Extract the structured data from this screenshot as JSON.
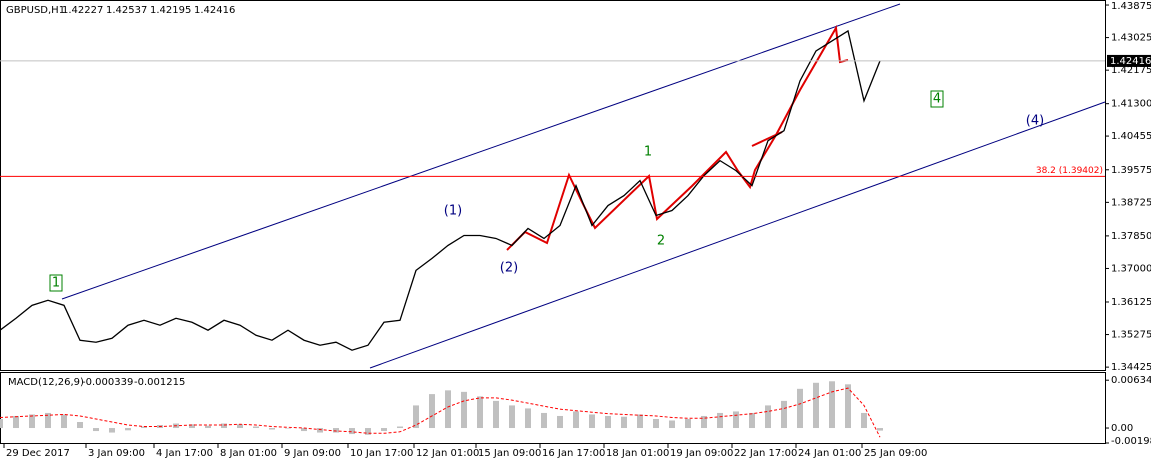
{
  "chart_data": [
    {
      "type": "line",
      "title": "GBPUSD,H1",
      "ohlc": [
        1.42227,
        1.42537,
        1.42195,
        1.42416
      ],
      "x": [
        0,
        8,
        16,
        24,
        32,
        40,
        48,
        56,
        64,
        72,
        80,
        88,
        96,
        104,
        112,
        120,
        128,
        136,
        144,
        152,
        160,
        168,
        176,
        184,
        192,
        200,
        208,
        216,
        224,
        232,
        240,
        248,
        256,
        264,
        272,
        280,
        288,
        296,
        304,
        312,
        320,
        328,
        336,
        344,
        352,
        360,
        368,
        376,
        384,
        392,
        400,
        408,
        416,
        424,
        432,
        440
      ],
      "series": [
        {
          "name": "GBPUSD",
          "color": "#000000",
          "values": [
            1.35388,
            1.357,
            1.36038,
            1.36169,
            1.36038,
            1.35127,
            1.35075,
            1.35179,
            1.35518,
            1.35648,
            1.35518,
            1.357,
            1.35596,
            1.35388,
            1.35648,
            1.35518,
            1.35257,
            1.35127,
            1.35388,
            1.35127,
            1.34997,
            1.35075,
            1.34867,
            1.34997,
            1.35596,
            1.35648,
            1.3695,
            1.37262,
            1.37601,
            1.37861,
            1.37861,
            1.37783,
            1.37601,
            1.38043,
            1.37783,
            1.38121,
            1.39163,
            1.38121,
            1.38642,
            1.38902,
            1.39293,
            1.38382,
            1.38512,
            1.38902,
            1.39423,
            1.39814,
            1.39553,
            1.39163,
            1.40334,
            1.40595,
            1.41896,
            1.42677,
            1.42938,
            1.43198,
            1.41376,
            1.42416
          ]
        }
      ],
      "current_price": 1.42416,
      "fibo": {
        "label": "38.2 (1.39402)",
        "value": 1.39402
      },
      "annotations": [
        "1",
        "(1)",
        "(2)",
        "1",
        "2",
        "(4)",
        "4"
      ],
      "xlim": [
        0,
        552.5
      ],
      "xticks": [
        {
          "value": 2,
          "label": "29 Dec 2017"
        },
        {
          "value": 43,
          "label": "3 Jan 09:00"
        },
        {
          "value": 77,
          "label": "4 Jan 17:00"
        },
        {
          "value": 109,
          "label": "8 Jan 01:00"
        },
        {
          "value": 141,
          "label": "9 Jan 09:00"
        },
        {
          "value": 174,
          "label": "10 Jan 17:00"
        },
        {
          "value": 207,
          "label": "12 Jan 01:00"
        },
        {
          "value": 238,
          "label": "15 Jan 09:00"
        },
        {
          "value": 270,
          "label": "16 Jan 17:00"
        },
        {
          "value": 302,
          "label": "18 Jan 01:00"
        },
        {
          "value": 334,
          "label": "19 Jan 09:00"
        },
        {
          "value": 366,
          "label": "22 Jan 17:00"
        },
        {
          "value": 398,
          "label": "24 Jan 01:00"
        },
        {
          "value": 431,
          "label": "25 Jan 09:00"
        }
      ],
      "ylim": [
        1.3435,
        1.4398
      ],
      "yticks": [
        1.43875,
        1.43025,
        1.42175,
        {
          "value": 1.413,
          "label": "1.41300"
        },
        1.40455,
        1.39575,
        1.38725,
        {
          "value": 1.3785,
          "label": "1.37850"
        },
        {
          "value": 1.37,
          "label": "1.37000"
        },
        1.36125,
        1.35275,
        1.34425
      ]
    },
    {
      "type": "macd",
      "title": "MACD(12,26,9)",
      "x": [
        0,
        8,
        16,
        24,
        32,
        40,
        48,
        56,
        64,
        72,
        80,
        88,
        96,
        104,
        112,
        120,
        128,
        136,
        144,
        152,
        160,
        168,
        176,
        184,
        192,
        200,
        208,
        216,
        224,
        232,
        240,
        248,
        256,
        264,
        272,
        280,
        288,
        296,
        304,
        312,
        320,
        328,
        336,
        344,
        352,
        360,
        368,
        376,
        384,
        392,
        400,
        408,
        416,
        424,
        432,
        440
      ],
      "series": [
        {
          "name": "MACD",
          "color": "#c0c0c0",
          "values": [
            0.0012,
            0.0016,
            0.0018,
            0.002,
            0.0018,
            0.0008,
            -0.0004,
            -0.0006,
            -0.0003,
            0.0002,
            0.0004,
            0.0006,
            0.0005,
            0.0003,
            0.0006,
            0.0005,
            0.0002,
            -0.0002,
            0,
            -0.0004,
            -0.0006,
            -0.0006,
            -0.0008,
            -0.0009,
            -0.0004,
            0.0002,
            0.003,
            0.0045,
            0.005,
            0.0048,
            0.0042,
            0.0036,
            0.003,
            0.0026,
            0.002,
            0.0016,
            0.0022,
            0.0018,
            0.0016,
            0.0015,
            0.0018,
            0.0012,
            0.001,
            0.0012,
            0.0016,
            0.002,
            0.0022,
            0.002,
            0.003,
            0.0036,
            0.0052,
            0.006,
            0.0062,
            0.0058,
            0.002,
            -0.000339
          ]
        },
        {
          "name": "Signal",
          "color": "#ff0000",
          "values": [
            0.0014,
            0.0015,
            0.0016,
            0.0017,
            0.0018,
            0.0016,
            0.0012,
            0.0008,
            0.0004,
            0.0002,
            0.0002,
            0.0003,
            0.0004,
            0.0004,
            0.0004,
            0.0005,
            0.0004,
            0.0002,
            0.0001,
            0,
            -0.0002,
            -0.0004,
            -0.0005,
            -0.0007,
            -0.0007,
            -0.0005,
            0.0004,
            0.0016,
            0.0028,
            0.0036,
            0.004,
            0.004,
            0.0037,
            0.0033,
            0.0029,
            0.0025,
            0.0023,
            0.0021,
            0.0019,
            0.0018,
            0.0017,
            0.0016,
            0.0014,
            0.0013,
            0.0013,
            0.0015,
            0.0017,
            0.0019,
            0.0022,
            0.0026,
            0.0032,
            0.004,
            0.0048,
            0.0053,
            0.003,
            -0.001215
          ]
        }
      ],
      "xlim": [
        0,
        552.5
      ],
      "ylim": [
        -0.001986,
        0.0073
      ],
      "yticks": [
        0.006345,
        {
          "value": 0,
          "label": "0.00"
        },
        -0.001986
      ]
    }
  ]
}
